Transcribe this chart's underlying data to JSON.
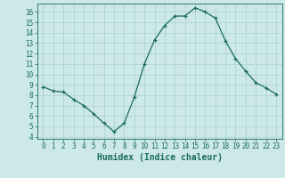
{
  "x": [
    0,
    1,
    2,
    3,
    4,
    5,
    6,
    7,
    8,
    9,
    10,
    11,
    12,
    13,
    14,
    15,
    16,
    17,
    18,
    19,
    20,
    21,
    22,
    23
  ],
  "y": [
    8.8,
    8.4,
    8.3,
    7.6,
    7.0,
    6.2,
    5.3,
    4.5,
    5.3,
    7.8,
    11.0,
    13.3,
    14.7,
    15.6,
    15.6,
    16.4,
    16.0,
    15.4,
    13.2,
    11.5,
    10.3,
    9.2,
    8.7,
    8.1
  ],
  "xlabel": "Humidex (Indice chaleur)",
  "ylim_min": 3.8,
  "ylim_max": 16.8,
  "yticks": [
    4,
    5,
    6,
    7,
    8,
    9,
    10,
    11,
    12,
    13,
    14,
    15,
    16
  ],
  "xticks": [
    0,
    1,
    2,
    3,
    4,
    5,
    6,
    7,
    8,
    9,
    10,
    11,
    12,
    13,
    14,
    15,
    16,
    17,
    18,
    19,
    20,
    21,
    22,
    23
  ],
  "line_color": "#1a6b5a",
  "marker": "+",
  "bg_color": "#cce8e8",
  "grid_color": "#aacfcf",
  "font_color": "#1a6b5a",
  "tick_fontsize": 5.5,
  "xlabel_fontsize": 7.0,
  "linewidth": 0.9,
  "markersize": 3.5,
  "xlim_min": -0.6,
  "xlim_max": 23.6
}
